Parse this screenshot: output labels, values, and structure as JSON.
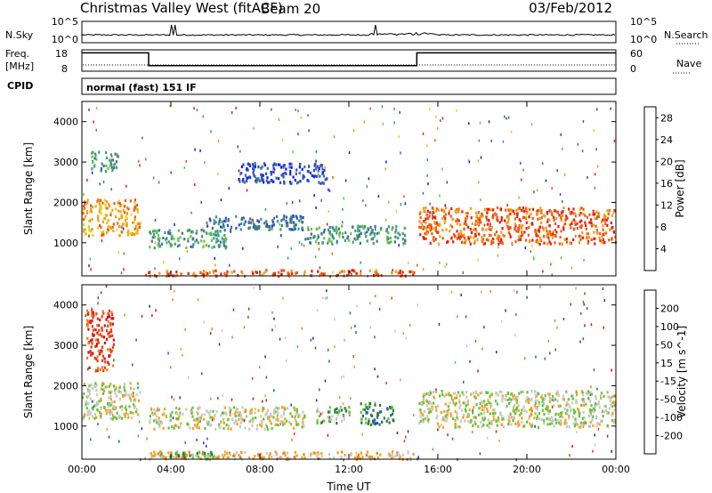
{
  "header": {
    "station": "Christmas Valley West (fitACF)",
    "beam": "Beam 20",
    "date": "03/Feb/2012"
  },
  "nsky_panel": {
    "label": "N.Sky",
    "y_ticks_left": [
      "10^5",
      "10^0"
    ],
    "y_ticks_right": [
      "10^5",
      "10^0"
    ],
    "right_label": "N.Search"
  },
  "freq_panel": {
    "label_line1": "Freq.",
    "label_line2": "[MHz]",
    "y_ticks_left": [
      "18",
      "8"
    ],
    "y_ticks_right": [
      "60",
      "0"
    ],
    "right_label": "Nave",
    "freq_steps": [
      {
        "t": 0,
        "mhz": 16.9
      },
      {
        "t": 3.0,
        "mhz": 10.4
      },
      {
        "t": 15.05,
        "mhz": 16.9
      },
      {
        "t": 24,
        "mhz": 16.9
      }
    ]
  },
  "cpid": {
    "label": "CPID",
    "mode": "normal (fast) 151 IF"
  },
  "chart_data": [
    {
      "type": "heatmap",
      "name": "power",
      "ylabel": "Slant Range [km]",
      "ylim": [
        180,
        4500
      ],
      "y_ticks": [
        1000,
        2000,
        3000,
        4000
      ],
      "xlim": [
        0,
        24
      ],
      "x_ticks": [
        0,
        4,
        8,
        12,
        16,
        20,
        24
      ],
      "colorbar": {
        "label": "Power [dB]",
        "ticks": [
          4,
          8,
          12,
          16,
          20,
          24,
          28
        ],
        "range": [
          0,
          30
        ],
        "colors": [
          "#0a1ee6",
          "#2a4dc2",
          "#3f6f97",
          "#3c9a7a",
          "#63c24d",
          "#e6cf14",
          "#f39d12",
          "#ee5a12",
          "#e41a14"
        ]
      },
      "features": [
        {
          "t0": 0.0,
          "t1": 2.6,
          "r0": 1200,
          "r1": 2100,
          "value": 22
        },
        {
          "t0": 0.4,
          "t1": 1.6,
          "r0": 2800,
          "r1": 3300,
          "value": 10
        },
        {
          "t0": 2.8,
          "t1": 15.0,
          "r0": 200,
          "r1": 350,
          "value": 26
        },
        {
          "t0": 3.0,
          "t1": 6.5,
          "r0": 900,
          "r1": 1350,
          "value": 10
        },
        {
          "t0": 5.5,
          "t1": 10.0,
          "r0": 1350,
          "r1": 1700,
          "value": 8
        },
        {
          "t0": 7.0,
          "t1": 11.0,
          "r0": 2500,
          "r1": 3000,
          "value": 6
        },
        {
          "t0": 10.0,
          "t1": 14.5,
          "r0": 1000,
          "r1": 1450,
          "value": 12
        },
        {
          "t0": 15.1,
          "t1": 24.0,
          "r0": 1000,
          "r1": 1900,
          "value": 24
        }
      ]
    },
    {
      "type": "heatmap",
      "name": "velocity",
      "ylabel": "Slant Range [km]",
      "ylim": [
        180,
        4500
      ],
      "y_ticks": [
        1000,
        2000,
        3000,
        4000
      ],
      "xlim": [
        0,
        24
      ],
      "x_ticks": [
        0,
        4,
        8,
        12,
        16,
        20,
        24
      ],
      "xtick_labels": [
        "00:00",
        "04:00",
        "08:00",
        "12:00",
        "16:00",
        "20:00",
        "00:00"
      ],
      "xlabel": "Time UT",
      "colorbar": {
        "label": "Velocity [m s^-1]",
        "ticks": [
          "200",
          "100",
          "50",
          "15",
          "-15",
          "-50",
          "-100",
          "-200"
        ],
        "colors": [
          "#1f2fae",
          "#2a56c8",
          "#2d7a3a",
          "#5cc53a",
          "#c8c8c4",
          "#f5a020",
          "#f27d12",
          "#e83a14",
          "#d5101a"
        ]
      },
      "features": [
        {
          "t0": 0.0,
          "t1": 2.6,
          "r0": 1200,
          "r1": 2100,
          "value": "0"
        },
        {
          "t0": 2.8,
          "t1": 15.0,
          "r0": 200,
          "r1": 400,
          "value": "-50"
        },
        {
          "t0": 3.5,
          "t1": 6.0,
          "r0": 200,
          "r1": 400,
          "value": "15"
        },
        {
          "t0": 3.0,
          "t1": 10.0,
          "r0": 950,
          "r1": 1500,
          "value": "0"
        },
        {
          "t0": 10.5,
          "t1": 12.0,
          "r0": 1100,
          "r1": 1500,
          "value": "15"
        },
        {
          "t0": 12.5,
          "t1": 14.0,
          "r0": 1050,
          "r1": 1600,
          "value": "50"
        },
        {
          "t0": 15.1,
          "t1": 24.0,
          "r0": 1000,
          "r1": 1900,
          "value": "0"
        },
        {
          "t0": 0.2,
          "t1": 1.4,
          "r0": 2400,
          "r1": 3900,
          "value": "-100"
        }
      ]
    }
  ]
}
